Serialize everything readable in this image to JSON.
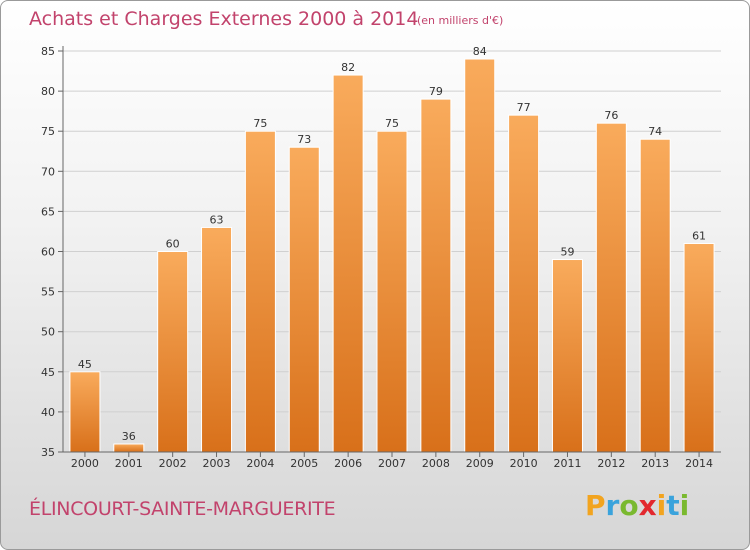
{
  "header": {
    "title": "Achats et Charges Externes 2000 à 2014",
    "subtitle": "(en milliers d'€)"
  },
  "footer": {
    "commune": "ÉLINCOURT-SAINTE-MARGUERITE",
    "logo_text": "Proxiti",
    "logo_colors": [
      "#f2a41f",
      "#3aa3dc",
      "#7ab92f",
      "#e2282e",
      "#f2a41f",
      "#3aa3dc",
      "#7ab92f"
    ]
  },
  "colors": {
    "bar_top": "#f9ab5c",
    "bar_bottom": "#d8701a",
    "grid": "#d0d0d0",
    "axis": "#666666"
  },
  "chart_data": {
    "type": "bar",
    "title": "Achats et Charges Externes 2000 à 2014",
    "subtitle": "(en milliers d'€)",
    "categories": [
      "2000",
      "2001",
      "2002",
      "2003",
      "2004",
      "2005",
      "2006",
      "2007",
      "2008",
      "2009",
      "2010",
      "2011",
      "2012",
      "2013",
      "2014"
    ],
    "values": [
      45,
      36,
      60,
      63,
      75,
      73,
      82,
      75,
      79,
      84,
      77,
      59,
      76,
      74,
      61
    ],
    "ylim": [
      35,
      85
    ],
    "yticks": [
      35,
      40,
      45,
      50,
      55,
      60,
      65,
      70,
      75,
      80,
      85
    ],
    "grid": true
  }
}
